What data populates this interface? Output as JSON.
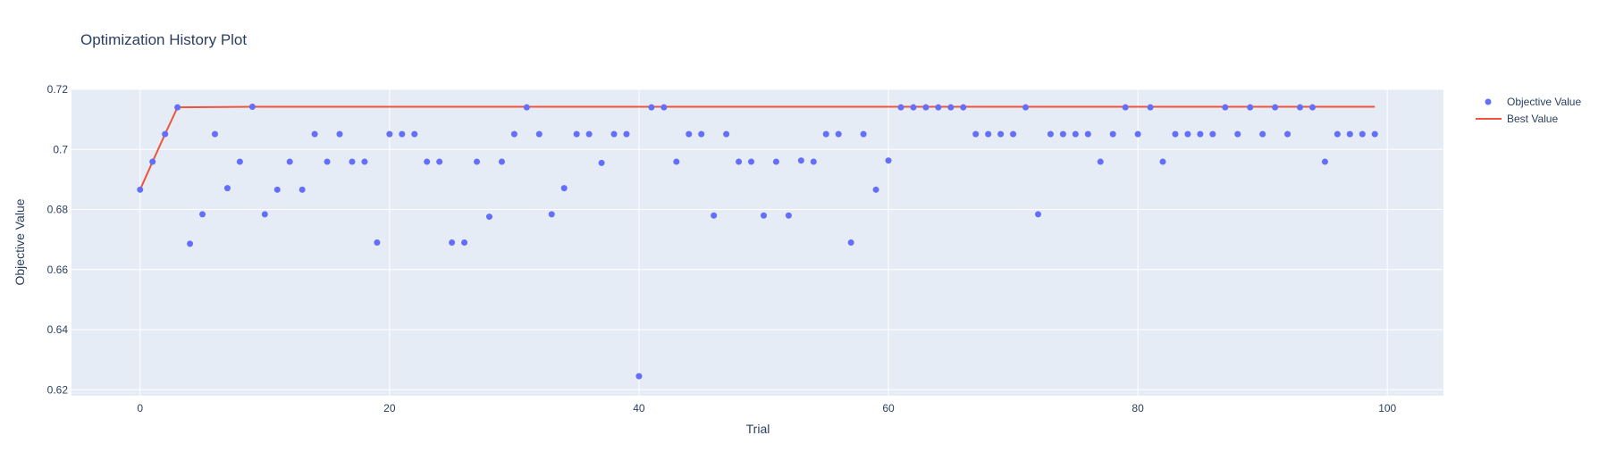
{
  "chart_data": {
    "type": "scatter",
    "title": "Optimization History Plot",
    "xlabel": "Trial",
    "ylabel": "Objective Value",
    "xlim": [
      -5.5,
      104.5
    ],
    "ylim": [
      0.618,
      0.72
    ],
    "x_ticks": [
      0,
      20,
      40,
      60,
      80,
      100
    ],
    "x_tick_labels": [
      "0",
      "20",
      "40",
      "60",
      "80",
      "100"
    ],
    "y_ticks": [
      0.62,
      0.64,
      0.66,
      0.68,
      0.7,
      0.72
    ],
    "y_tick_labels": [
      "0.62",
      "0.64",
      "0.66",
      "0.68",
      "0.7",
      "0.72"
    ],
    "legend_position": "top-right",
    "grid": true,
    "colors": {
      "plot_bg": "#e5ecf6",
      "grid": "#ffffff",
      "objective": "#636efa",
      "best": "#ef553b",
      "text": "#2a3f5f"
    },
    "series": [
      {
        "name": "Objective Value",
        "mode": "markers",
        "x": [
          0,
          1,
          2,
          3,
          4,
          5,
          6,
          7,
          8,
          9,
          10,
          11,
          12,
          13,
          14,
          15,
          16,
          17,
          18,
          19,
          20,
          21,
          22,
          23,
          24,
          25,
          26,
          27,
          28,
          29,
          30,
          31,
          32,
          33,
          34,
          35,
          36,
          37,
          38,
          39,
          40,
          41,
          42,
          43,
          44,
          45,
          46,
          47,
          48,
          49,
          50,
          51,
          52,
          53,
          54,
          55,
          56,
          57,
          58,
          59,
          60,
          61,
          62,
          63,
          64,
          65,
          66,
          67,
          68,
          69,
          70,
          71,
          72,
          73,
          74,
          75,
          76,
          77,
          78,
          79,
          80,
          81,
          82,
          83,
          84,
          85,
          86,
          87,
          88,
          89,
          90,
          91,
          92,
          93,
          94,
          95,
          96,
          97,
          98,
          99
        ],
        "y": [
          0.6866,
          0.6959,
          0.7051,
          0.714,
          0.6686,
          0.6784,
          0.7051,
          0.6871,
          0.6959,
          0.7142,
          0.6784,
          0.6866,
          0.6959,
          0.6866,
          0.7051,
          0.6959,
          0.7051,
          0.6959,
          0.6959,
          0.669,
          0.7051,
          0.7051,
          0.7051,
          0.6959,
          0.6959,
          0.669,
          0.669,
          0.6959,
          0.6776,
          0.6959,
          0.7051,
          0.714,
          0.7051,
          0.6784,
          0.6871,
          0.7051,
          0.7051,
          0.6955,
          0.7051,
          0.7051,
          0.6245,
          0.714,
          0.714,
          0.6959,
          0.7051,
          0.7051,
          0.678,
          0.7051,
          0.6959,
          0.6959,
          0.678,
          0.6959,
          0.678,
          0.6963,
          0.6959,
          0.7051,
          0.7051,
          0.669,
          0.7051,
          0.6866,
          0.6963,
          0.714,
          0.714,
          0.714,
          0.714,
          0.714,
          0.714,
          0.7051,
          0.7051,
          0.7051,
          0.7051,
          0.714,
          0.6784,
          0.7051,
          0.7051,
          0.7051,
          0.7051,
          0.6959,
          0.7051,
          0.714,
          0.7051,
          0.714,
          0.6959,
          0.7051,
          0.7051,
          0.7051,
          0.7051,
          0.714,
          0.7051,
          0.714,
          0.7051,
          0.714,
          0.7051,
          0.714,
          0.714,
          0.6959,
          0.7051,
          0.7051,
          0.7051,
          0.7051
        ]
      },
      {
        "name": "Best Value",
        "mode": "lines",
        "x": [
          0,
          1,
          2,
          3,
          9,
          99
        ],
        "y": [
          0.6866,
          0.6959,
          0.7051,
          0.714,
          0.7142,
          0.7142
        ]
      }
    ]
  }
}
